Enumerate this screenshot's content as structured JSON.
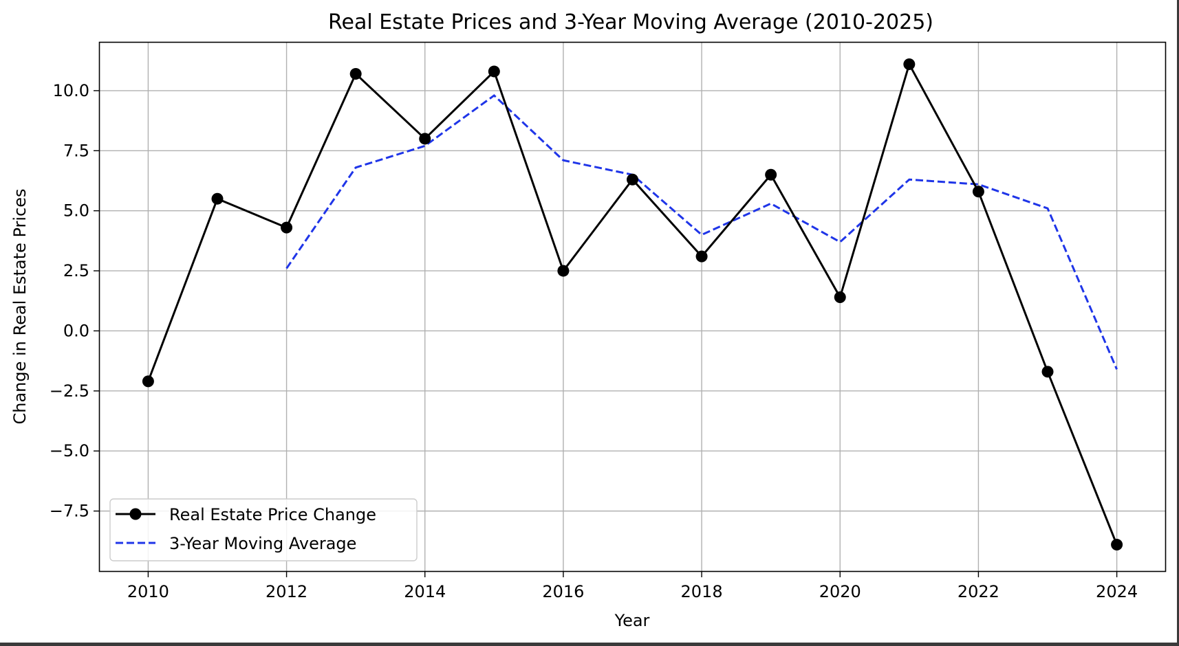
{
  "chart_data": {
    "type": "line",
    "title": "Real Estate Prices and 3-Year Moving Average (2010-2025)",
    "xlabel": "Year",
    "ylabel": "Change in Real Estate Prices",
    "x": [
      2010,
      2011,
      2012,
      2013,
      2014,
      2015,
      2016,
      2017,
      2018,
      2019,
      2020,
      2021,
      2022,
      2023,
      2024
    ],
    "xlim": [
      2009.3,
      2024.7
    ],
    "ylim": [
      -10.0,
      12.0
    ],
    "xticks": [
      2010,
      2012,
      2014,
      2016,
      2018,
      2020,
      2022,
      2024
    ],
    "xtick_labels": [
      "2010",
      "2012",
      "2014",
      "2016",
      "2018",
      "2020",
      "2022",
      "2024"
    ],
    "yticks": [
      -7.5,
      -5.0,
      -2.5,
      0.0,
      2.5,
      5.0,
      7.5,
      10.0
    ],
    "ytick_labels": [
      "−7.5",
      "−5.0",
      "−2.5",
      "0.0",
      "2.5",
      "5.0",
      "7.5",
      "10.0"
    ],
    "grid": true,
    "legend_position": "lower-left",
    "series": [
      {
        "name": "Real Estate Price Change",
        "style": "solid-with-markers",
        "color": "#000000",
        "values": [
          -2.1,
          5.5,
          4.3,
          10.7,
          8.0,
          10.8,
          2.5,
          6.3,
          3.1,
          6.5,
          1.4,
          11.1,
          5.8,
          -1.7,
          -8.9
        ]
      },
      {
        "name": "3-Year Moving Average",
        "style": "dashed",
        "color": "#1f35e8",
        "values": [
          null,
          null,
          2.6,
          6.8,
          7.7,
          9.8,
          7.1,
          6.5,
          4.0,
          5.3,
          3.7,
          6.3,
          6.1,
          5.1,
          -1.6
        ]
      }
    ]
  }
}
